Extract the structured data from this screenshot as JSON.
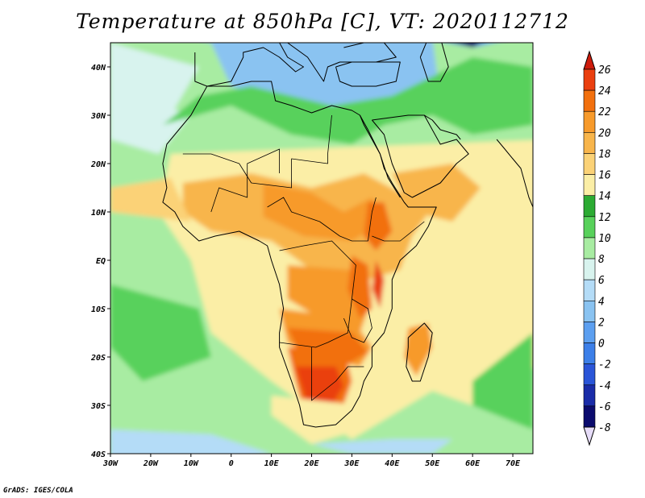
{
  "title": "Temperature at 850hPa [C], VT: 2020112712",
  "credit": "GrADS: IGES/COLA",
  "map": {
    "lon_range": [
      -30,
      75
    ],
    "lat_range": [
      -40,
      45
    ],
    "lon_ticks": [
      {
        "value": -30,
        "label": "30W"
      },
      {
        "value": -20,
        "label": "20W"
      },
      {
        "value": -10,
        "label": "10W"
      },
      {
        "value": 0,
        "label": "0"
      },
      {
        "value": 10,
        "label": "10E"
      },
      {
        "value": 20,
        "label": "20E"
      },
      {
        "value": 30,
        "label": "30E"
      },
      {
        "value": 40,
        "label": "40E"
      },
      {
        "value": 50,
        "label": "50E"
      },
      {
        "value": 60,
        "label": "60E"
      },
      {
        "value": 70,
        "label": "70E"
      }
    ],
    "lat_ticks": [
      {
        "value": 40,
        "label": "40N"
      },
      {
        "value": 30,
        "label": "30N"
      },
      {
        "value": 20,
        "label": "20N"
      },
      {
        "value": 10,
        "label": "10N"
      },
      {
        "value": 0,
        "label": "EQ"
      },
      {
        "value": -10,
        "label": "10S"
      },
      {
        "value": -20,
        "label": "20S"
      },
      {
        "value": -30,
        "label": "30S"
      },
      {
        "value": -40,
        "label": "40S"
      }
    ]
  },
  "colorbar": {
    "levels": [
      26,
      24,
      22,
      20,
      18,
      16,
      14,
      12,
      10,
      8,
      6,
      4,
      2,
      0,
      -2,
      -4,
      -6,
      -8
    ],
    "colors": [
      "#ce1c0c",
      "#ea3f0f",
      "#f2700e",
      "#f79a2b",
      "#f8b54b",
      "#fbd277",
      "#fbeea6",
      "#2cab33",
      "#58d15b",
      "#a8eca2",
      "#d8f3ee",
      "#b4dcf7",
      "#8ac3f1",
      "#5c9ff0",
      "#3c7fe8",
      "#2a55d8",
      "#1a2ca8",
      "#0b0b6e",
      "#e6dcf8"
    ]
  }
}
